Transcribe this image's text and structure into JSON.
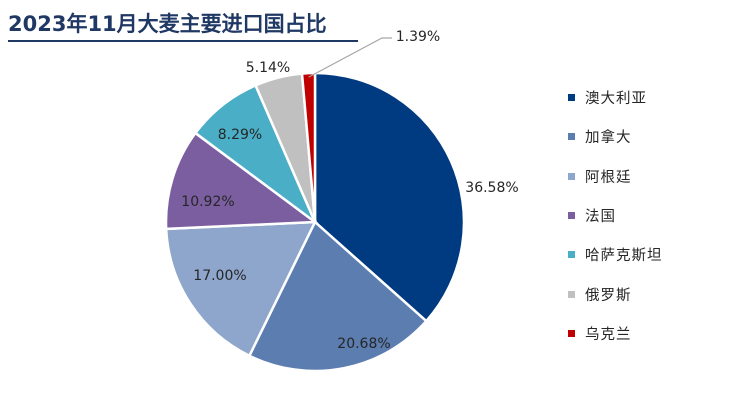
{
  "title": "2023年11月大麦主要进口国占比",
  "chart_data": {
    "type": "pie",
    "unit": "%",
    "slices": [
      {
        "name": "澳大利亚",
        "value": 36.58,
        "label": "36.58%",
        "color": "#003a80"
      },
      {
        "name": "加拿大",
        "value": 20.68,
        "label": "20.68%",
        "color": "#5b7db0"
      },
      {
        "name": "阿根廷",
        "value": 17.0,
        "label": "17.00%",
        "color": "#8ea6cc"
      },
      {
        "name": "法国",
        "value": 10.92,
        "label": "10.92%",
        "color": "#7b5ea0"
      },
      {
        "name": "哈萨克斯坦",
        "value": 8.29,
        "label": "8.29%",
        "color": "#4aaec6"
      },
      {
        "name": "俄罗斯",
        "value": 5.14,
        "label": "5.14%",
        "color": "#c0c0c0"
      },
      {
        "name": "乌克兰",
        "value": 1.39,
        "label": "1.39%",
        "color": "#c00000"
      }
    ],
    "start_angle_deg": 0,
    "direction": "clockwise",
    "legend_position": "right"
  }
}
